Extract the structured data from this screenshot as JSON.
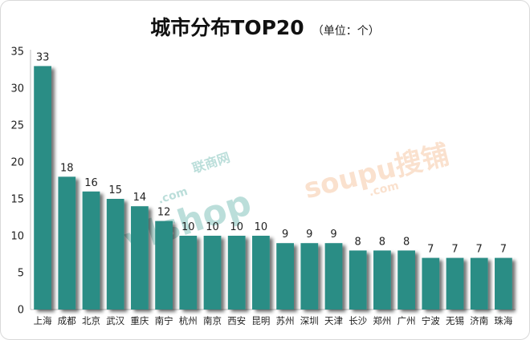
{
  "title": "城市分布TOP20",
  "unit_label": "（单位：个）",
  "watermarks": [
    "ylshop",
    ".com",
    "联商网",
    "soupu搜铺",
    ".com"
  ],
  "colors": {
    "bar": "#2a8d85",
    "shadow": "#777777",
    "axis": "#bfbfbf",
    "grid": "#ffffff",
    "watermark_left": "#2f9c8f",
    "watermark_right": "#f0a36a"
  },
  "chart_data": {
    "type": "bar",
    "title": "城市分布TOP20",
    "unit": "个",
    "categories": [
      "上海",
      "成都",
      "北京",
      "武汉",
      "重庆",
      "南宁",
      "杭州",
      "南京",
      "西安",
      "昆明",
      "苏州",
      "深圳",
      "天津",
      "长沙",
      "郑州",
      "广州",
      "宁波",
      "无锡",
      "济南",
      "珠海"
    ],
    "values": [
      33,
      18,
      16,
      15,
      14,
      12,
      10,
      10,
      10,
      10,
      9,
      9,
      9,
      8,
      8,
      8,
      7,
      7,
      7,
      7
    ],
    "ylim": [
      0,
      35
    ],
    "yticks": [
      0,
      5,
      10,
      15,
      20,
      25,
      30,
      35
    ],
    "grid": false,
    "legend": "none",
    "data_labels": true
  }
}
